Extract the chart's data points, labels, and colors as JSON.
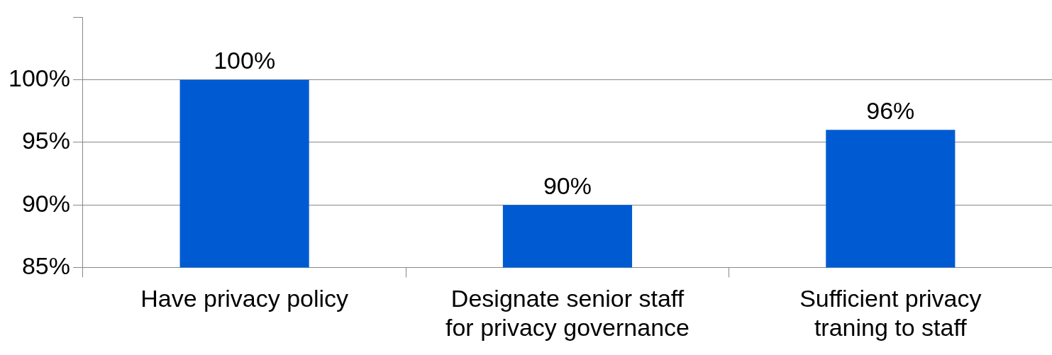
{
  "chart_data": {
    "type": "bar",
    "categories": [
      "Have privacy policy",
      "Designate senior staff for privacy governance",
      "Sufficient privacy traning to staff"
    ],
    "values": [
      100,
      90,
      96
    ],
    "value_labels": [
      "100%",
      "90%",
      "96%"
    ],
    "color": "#005bd3",
    "ylim": [
      85,
      105
    ],
    "yticks": [
      {
        "value": 85,
        "label": "85%"
      },
      {
        "value": 90,
        "label": "90%"
      },
      {
        "value": 95,
        "label": "95%"
      },
      {
        "value": 100,
        "label": "100%"
      },
      {
        "value": 105,
        "label": null
      }
    ],
    "grid": "y",
    "legend": false
  }
}
